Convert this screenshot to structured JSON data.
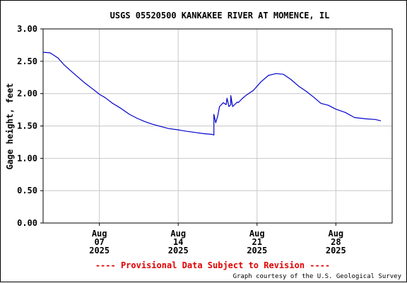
{
  "chart_data": {
    "type": "line",
    "title": "USGS 05520500 KANKAKEE RIVER AT MOMENCE, IL",
    "ylabel": "Gage height, feet",
    "xlabel": "",
    "ylim": [
      0,
      3
    ],
    "grid": true,
    "y_ticks": [
      "0.00",
      "0.50",
      "1.00",
      "1.50",
      "2.00",
      "2.50",
      "3.00"
    ],
    "x_ticks": [
      {
        "x": "2025-08-07",
        "month": "Aug",
        "day": "07",
        "year": "2025"
      },
      {
        "x": "2025-08-14",
        "month": "Aug",
        "day": "14",
        "year": "2025"
      },
      {
        "x": "2025-08-21",
        "month": "Aug",
        "day": "21",
        "year": "2025"
      },
      {
        "x": "2025-08-28",
        "month": "Aug",
        "day": "28",
        "year": "2025"
      }
    ],
    "xlim": [
      "2025-08-02",
      "2025-09-02"
    ],
    "series": [
      {
        "color": "#0000cc",
        "x": [
          "2025-08-02",
          "2025-08-02 15:00",
          "2025-08-03 08:00",
          "2025-08-03 20:00",
          "2025-08-04 16:00",
          "2025-08-05 16:00",
          "2025-08-06 12:00",
          "2025-08-07 00:00",
          "2025-08-07 12:00",
          "2025-08-08 04:00",
          "2025-08-08 20:00",
          "2025-08-09 16:00",
          "2025-08-10 08:00",
          "2025-08-11 00:00",
          "2025-08-11 16:00",
          "2025-08-12 12:00",
          "2025-08-13 04:00",
          "2025-08-14 00:00",
          "2025-08-14 16:00",
          "2025-08-15 12:00",
          "2025-08-16 08:00",
          "2025-08-17 00:00",
          "2025-08-17 04:00",
          "2025-08-17 04:00",
          "2025-08-17 08:00",
          "2025-08-17 12:00",
          "2025-08-17 16:00",
          "2025-08-18 00:00",
          "2025-08-18 06:00",
          "2025-08-18 08:00",
          "2025-08-18 12:00",
          "2025-08-18 16:00",
          "2025-08-18 16:00",
          "2025-08-18 20:00",
          "2025-08-19 06:00",
          "2025-08-19 08:00",
          "2025-08-19 16:00",
          "2025-08-20 00:00",
          "2025-08-20 16:00",
          "2025-08-21 08:00",
          "2025-08-22 00:00",
          "2025-08-22 16:00",
          "2025-08-23 08:00",
          "2025-08-24 00:00",
          "2025-08-24 16:00",
          "2025-08-25 08:00",
          "2025-08-26 00:00",
          "2025-08-26 16:00",
          "2025-08-27 08:00",
          "2025-08-28 00:00",
          "2025-08-28 20:00",
          "2025-08-29 16:00",
          "2025-08-30 16:00",
          "2025-08-31 12:00",
          "2025-09-01 00:00"
        ],
        "values": [
          2.64,
          2.63,
          2.55,
          2.45,
          2.32,
          2.17,
          2.06,
          1.99,
          1.94,
          1.85,
          1.78,
          1.68,
          1.62,
          1.57,
          1.53,
          1.49,
          1.46,
          1.44,
          1.42,
          1.4,
          1.38,
          1.37,
          1.36,
          1.68,
          1.55,
          1.65,
          1.8,
          1.86,
          1.83,
          1.93,
          1.8,
          1.83,
          1.97,
          1.8,
          1.87,
          1.86,
          1.92,
          1.97,
          2.05,
          2.18,
          2.28,
          2.31,
          2.3,
          2.22,
          2.12,
          2.04,
          1.95,
          1.85,
          1.82,
          1.76,
          1.71,
          1.63,
          1.61,
          1.6,
          1.58
        ]
      }
    ],
    "footer": {
      "provisional": "---- Provisional Data Subject to Revision ----",
      "credit": "Graph courtesy of the U.S. Geological Survey"
    },
    "colors": {
      "line": "#0000cc",
      "grid": "#c8c8c8",
      "provisional": "#e00000"
    }
  }
}
